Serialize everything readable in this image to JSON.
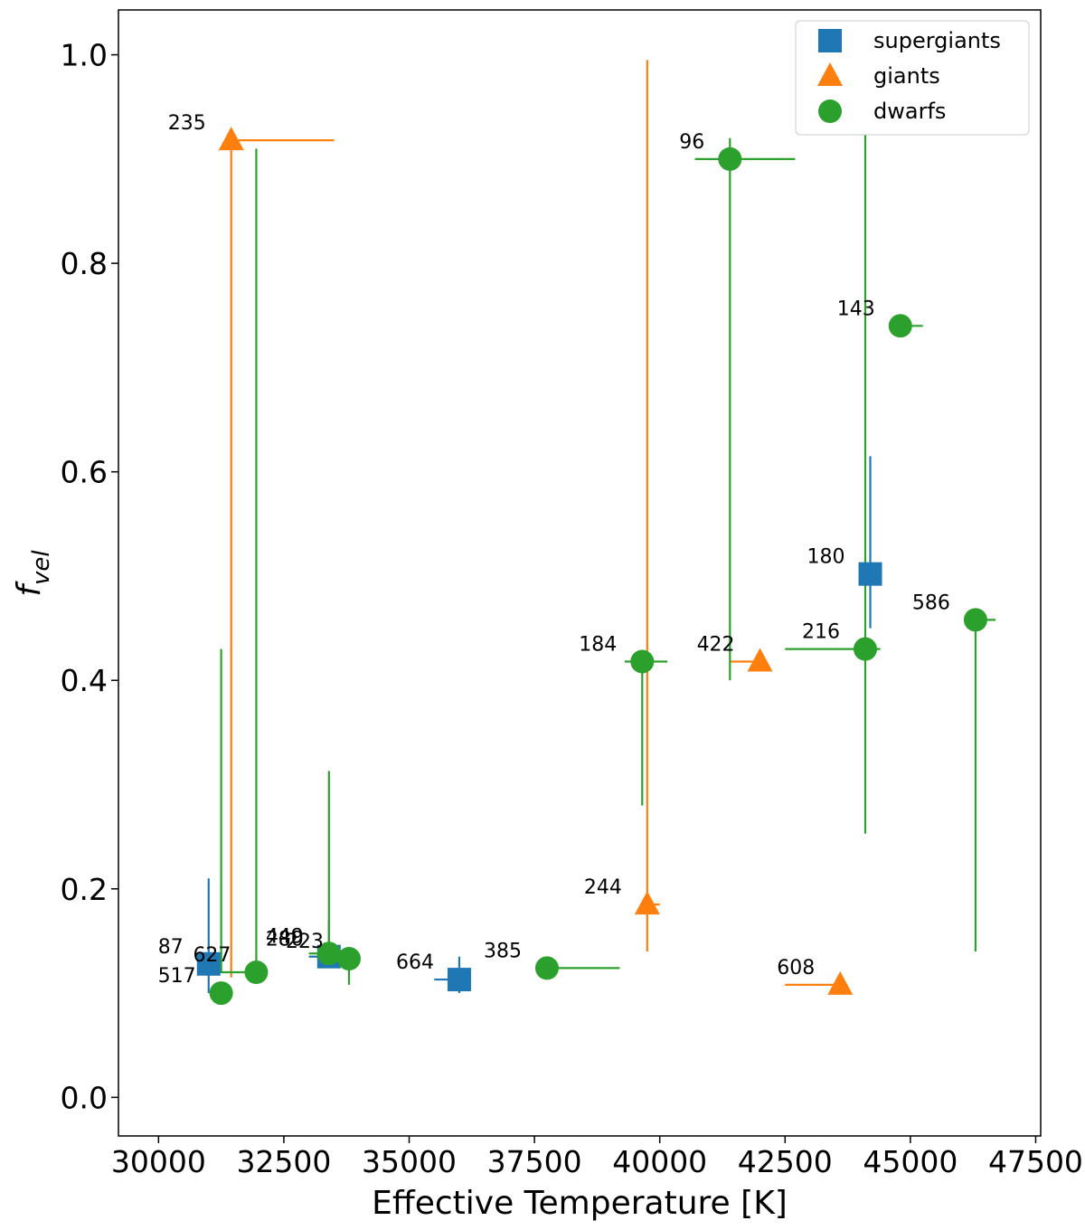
{
  "chart_data": {
    "type": "scatter",
    "xlabel": "Effective Temperature [K]",
    "ylabel_main": "f",
    "ylabel_sub": "vel",
    "xlim": [
      29200,
      47600
    ],
    "ylim": [
      -0.037,
      1.043
    ],
    "xticks": [
      30000,
      32500,
      35000,
      37500,
      40000,
      42500,
      45000,
      47500
    ],
    "yticks": [
      0.0,
      0.2,
      0.4,
      0.6,
      0.8,
      1.0
    ],
    "xtick_labels": [
      "30000",
      "32500",
      "35000",
      "37500",
      "40000",
      "42500",
      "45000",
      "47500"
    ],
    "ytick_labels": [
      "0.0",
      "0.2",
      "0.4",
      "0.6",
      "0.8",
      "1.0"
    ],
    "legend": {
      "placement": "top-right",
      "entries": [
        {
          "name": "supergiants",
          "color": "#1f77b4",
          "marker": "square"
        },
        {
          "name": "giants",
          "color": "#ff7f0e",
          "marker": "triangle"
        },
        {
          "name": "dwarfs",
          "color": "#2ca02c",
          "marker": "circle"
        }
      ]
    },
    "series": [
      {
        "name": "supergiants",
        "color": "#1f77b4",
        "marker": "square",
        "points": [
          {
            "label": "87",
            "x": 31000,
            "y": 0.128,
            "xerr": [
              31000,
              31000
            ],
            "yerr": [
              0.1,
              0.21
            ]
          },
          {
            "label": "280",
            "x": 33400,
            "y": 0.135,
            "xerr": [
              33000,
              33500
            ],
            "yerr": [
              0.125,
              0.17
            ]
          },
          {
            "label": "664",
            "x": 36000,
            "y": 0.113,
            "xerr": [
              35500,
              36000
            ],
            "yerr": [
              0.1,
              0.135
            ]
          },
          {
            "label": "180",
            "x": 44200,
            "y": 0.502,
            "xerr": [
              44100,
              44200
            ],
            "yerr": [
              0.45,
              0.615
            ]
          }
        ]
      },
      {
        "name": "giants",
        "color": "#ff7f0e",
        "marker": "triangle",
        "points": [
          {
            "label": "235",
            "x": 31450,
            "y": 0.918,
            "xerr": [
              31450,
              33500
            ],
            "yerr": [
              0.115,
              0.918
            ]
          },
          {
            "label": "244",
            "x": 39750,
            "y": 0.185,
            "xerr": [
              39750,
              40000
            ],
            "yerr": [
              0.14,
              0.995
            ]
          },
          {
            "label": "422",
            "x": 42000,
            "y": 0.418,
            "xerr": [
              41400,
              42000
            ],
            "yerr": [
              0.418,
              0.418
            ]
          },
          {
            "label": "608",
            "x": 43600,
            "y": 0.108,
            "xerr": [
              42500,
              43600
            ],
            "yerr": [
              0.108,
              0.108
            ]
          }
        ]
      },
      {
        "name": "dwarfs",
        "color": "#2ca02c",
        "marker": "circle",
        "points": [
          {
            "label": "517",
            "x": 31250,
            "y": 0.1,
            "xerr": [
              31250,
              31250
            ],
            "yerr": [
              0.12,
              0.43
            ]
          },
          {
            "label": "627",
            "x": 31950,
            "y": 0.12,
            "xerr": [
              31000,
              31950
            ],
            "yerr": [
              0.12,
              0.91
            ]
          },
          {
            "label": "449",
            "x": 33400,
            "y": 0.138,
            "xerr": [
              33000,
              33400
            ],
            "yerr": [
              0.14,
              0.313
            ]
          },
          {
            "label": "223",
            "x": 33800,
            "y": 0.133,
            "xerr": [
              33800,
              33800
            ],
            "yerr": [
              0.108,
              0.14
            ]
          },
          {
            "label": "385",
            "x": 37750,
            "y": 0.124,
            "xerr": [
              37750,
              39200
            ],
            "yerr": [
              0.124,
              0.124
            ]
          },
          {
            "label": "184",
            "x": 39650,
            "y": 0.418,
            "xerr": [
              39300,
              40150
            ],
            "yerr": [
              0.28,
              0.418
            ]
          },
          {
            "label": "96",
            "x": 41400,
            "y": 0.9,
            "xerr": [
              40700,
              42700
            ],
            "yerr": [
              0.4,
              0.92
            ]
          },
          {
            "label": "143",
            "x": 44800,
            "y": 0.74,
            "xerr": [
              44800,
              45250
            ],
            "yerr": [
              0.74,
              0.74
            ]
          },
          {
            "label": "216",
            "x": 44100,
            "y": 0.43,
            "xerr": [
              42500,
              44400
            ],
            "yerr": [
              0.253,
              0.988
            ]
          },
          {
            "label": "586",
            "x": 46300,
            "y": 0.458,
            "xerr": [
              46300,
              46700
            ],
            "yerr": [
              0.14,
              0.458
            ]
          }
        ]
      }
    ]
  }
}
